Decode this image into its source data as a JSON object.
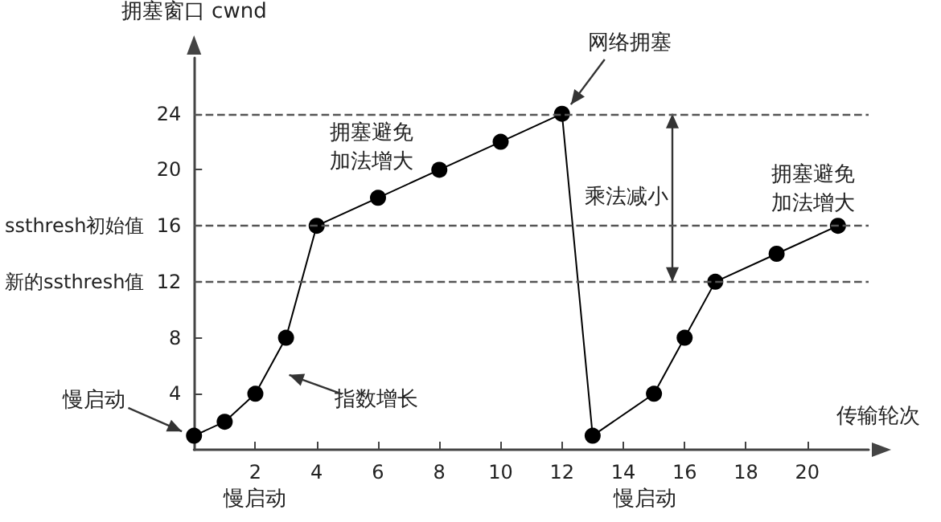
{
  "chart_data": {
    "type": "line",
    "xlabel": "传输轮次",
    "ylabel": "拥塞窗口 cwnd",
    "xlim": [
      0,
      22
    ],
    "ylim": [
      0,
      28
    ],
    "xticks": [
      2,
      4,
      6,
      8,
      10,
      12,
      14,
      16,
      18,
      20
    ],
    "yticks": [
      4,
      8,
      {
        "value": 12,
        "label": "新的ssthresh值  12"
      },
      {
        "value": 16,
        "label": "ssthresh初始值  16"
      },
      20,
      24
    ],
    "series": [
      {
        "color": "#000000",
        "x": [
          0,
          1,
          2,
          3,
          4,
          6,
          8,
          10,
          12,
          13,
          15,
          16,
          17,
          19,
          21
        ],
        "values": [
          1,
          2,
          4,
          8,
          16,
          18,
          20,
          22,
          24,
          1,
          4,
          8,
          12,
          14,
          16
        ]
      }
    ],
    "ref_lines": [
      {
        "axis": "y",
        "value": 24,
        "line_style": "dashed",
        "color": "#555555"
      },
      {
        "axis": "y",
        "value": 16,
        "line_style": "dashed",
        "color": "#555555"
      },
      {
        "axis": "y",
        "value": 12,
        "line_style": "dashed",
        "color": "#555555"
      }
    ],
    "annotations": [
      {
        "text": "网络拥塞",
        "x": 12,
        "y": 24
      },
      {
        "text": "慢启动",
        "x": 0,
        "y": 1
      },
      {
        "text": "指数增长",
        "x": 2.7,
        "y": 5.6
      },
      "拥塞避免加法增大",
      "拥塞避免加法增大",
      "乘法减小",
      "慢启动",
      "慢启动"
    ],
    "marker": "circle",
    "line_style": "solid",
    "grid": false
  }
}
